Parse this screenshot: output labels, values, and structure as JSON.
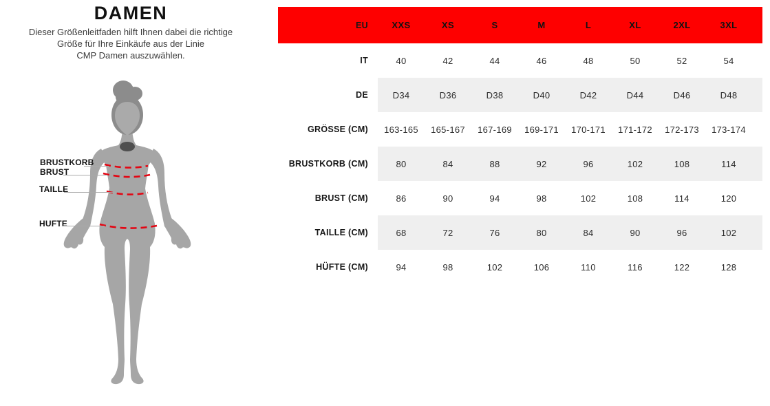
{
  "page": {
    "title": "DAMEN",
    "subtitle": "Dieser Größenleitfaden hilft Ihnen dabei die richtige\nGröße für Ihre Einkäufe aus der Linie\nCMP Damen auszuwählen."
  },
  "figure": {
    "silhouette": "female-body-silhouette",
    "labels": [
      {
        "id": "brustkorb",
        "text": "BRUSTKORB"
      },
      {
        "id": "brust",
        "text": "BRUST"
      },
      {
        "id": "taille",
        "text": "TAILLE"
      },
      {
        "id": "hufte",
        "text": "HUFTE"
      }
    ]
  },
  "chart_data": {
    "type": "table",
    "title": "CMP Damen Größentabelle",
    "columns": [
      "EU",
      "XXS",
      "XS",
      "S",
      "M",
      "L",
      "XL",
      "2XL",
      "3XL"
    ],
    "rows": [
      [
        "IT",
        "40",
        "42",
        "44",
        "46",
        "48",
        "50",
        "52",
        "54"
      ],
      [
        "DE",
        "D34",
        "D36",
        "D38",
        "D40",
        "D42",
        "D44",
        "D46",
        "D48"
      ],
      [
        "GRÖSSE (CM)",
        "163-165",
        "165-167",
        "167-169",
        "169-171",
        "170-171",
        "171-172",
        "172-173",
        "173-174"
      ],
      [
        "BRUSTKORB (CM)",
        "80",
        "84",
        "88",
        "92",
        "96",
        "102",
        "108",
        "114"
      ],
      [
        "BRUST (CM)",
        "86",
        "90",
        "94",
        "98",
        "102",
        "108",
        "114",
        "120"
      ],
      [
        "TAILLE (CM)",
        "68",
        "72",
        "76",
        "80",
        "84",
        "90",
        "96",
        "102"
      ],
      [
        "HÜFTE (CM)",
        "94",
        "98",
        "102",
        "106",
        "110",
        "116",
        "122",
        "128"
      ]
    ],
    "layout_hints": {
      "header_background": "#fe0000",
      "shaded_row_indices": [
        1,
        3,
        5
      ],
      "shade_color": "#efefef",
      "label_column_align": "right",
      "value_align": "center"
    }
  },
  "colors": {
    "accent-red": "#fe0000",
    "row-shade": "#efefef",
    "dash-red": "#e30613",
    "body-gray": "#a6a6a6",
    "hair-gray": "#8c8c8c",
    "face-gray": "#aaaaaa",
    "neck-shadow": "#4f4f4f",
    "line-gray": "#a9a9a9"
  }
}
